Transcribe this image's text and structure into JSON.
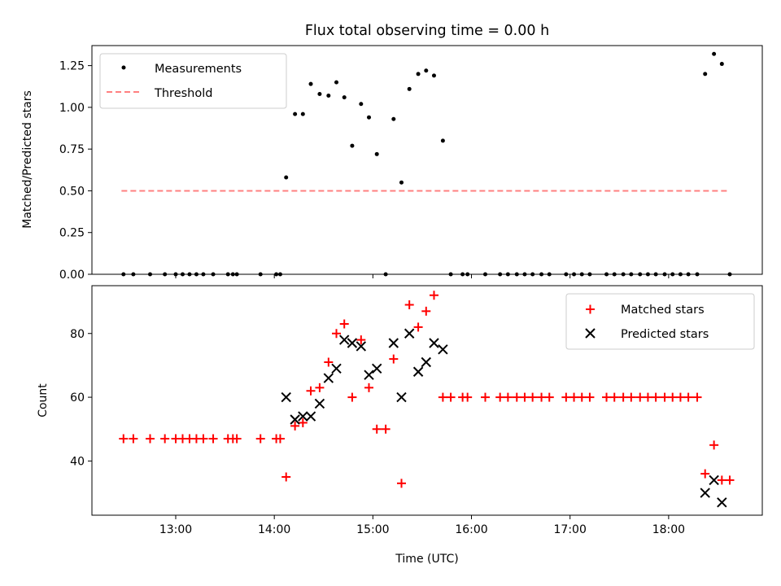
{
  "figure": {
    "title": "Flux total observing time = 0.00 h"
  },
  "chart_data": [
    {
      "type": "scatter",
      "ylabel": "Matched/Predicted stars",
      "xlim": [
        12.15,
        18.95
      ],
      "ylim": [
        0.0,
        1.37
      ],
      "yticks": [
        0.0,
        0.25,
        0.5,
        0.75,
        1.0,
        1.25
      ],
      "ytick_labels": [
        "0.00",
        "0.25",
        "0.50",
        "0.75",
        "1.00",
        "1.25"
      ],
      "xticks": [
        13,
        14,
        15,
        16,
        17,
        18
      ],
      "legend": {
        "placement": "top-left",
        "entries": [
          "Measurements",
          "Threshold"
        ]
      },
      "series": [
        {
          "name": "Measurements",
          "marker": "dot",
          "color": "#000000",
          "points": [
            [
              12.47,
              0.0
            ],
            [
              12.57,
              0.0
            ],
            [
              12.74,
              0.0
            ],
            [
              12.89,
              0.0
            ],
            [
              13.0,
              0.0
            ],
            [
              13.07,
              0.0
            ],
            [
              13.14,
              0.0
            ],
            [
              13.21,
              0.0
            ],
            [
              13.28,
              0.0
            ],
            [
              13.38,
              0.0
            ],
            [
              13.53,
              0.0
            ],
            [
              13.58,
              0.0
            ],
            [
              13.62,
              0.0
            ],
            [
              13.86,
              0.0
            ],
            [
              14.02,
              0.0
            ],
            [
              14.06,
              0.0
            ],
            [
              14.12,
              0.58
            ],
            [
              14.21,
              0.96
            ],
            [
              14.29,
              0.96
            ],
            [
              14.37,
              1.14
            ],
            [
              14.46,
              1.08
            ],
            [
              14.55,
              1.07
            ],
            [
              14.63,
              1.15
            ],
            [
              14.71,
              1.06
            ],
            [
              14.79,
              0.77
            ],
            [
              14.88,
              1.02
            ],
            [
              14.96,
              0.94
            ],
            [
              15.04,
              0.72
            ],
            [
              15.13,
              0.0
            ],
            [
              15.21,
              0.93
            ],
            [
              15.29,
              0.55
            ],
            [
              15.37,
              1.11
            ],
            [
              15.46,
              1.2
            ],
            [
              15.54,
              1.22
            ],
            [
              15.62,
              1.19
            ],
            [
              15.71,
              0.8
            ],
            [
              15.79,
              0.0
            ],
            [
              15.91,
              0.0
            ],
            [
              15.96,
              0.0
            ],
            [
              16.14,
              0.0
            ],
            [
              16.29,
              0.0
            ],
            [
              16.37,
              0.0
            ],
            [
              16.46,
              0.0
            ],
            [
              16.54,
              0.0
            ],
            [
              16.62,
              0.0
            ],
            [
              16.71,
              0.0
            ],
            [
              16.79,
              0.0
            ],
            [
              16.96,
              0.0
            ],
            [
              17.04,
              0.0
            ],
            [
              17.12,
              0.0
            ],
            [
              17.2,
              0.0
            ],
            [
              17.37,
              0.0
            ],
            [
              17.45,
              0.0
            ],
            [
              17.54,
              0.0
            ],
            [
              17.62,
              0.0
            ],
            [
              17.71,
              0.0
            ],
            [
              17.79,
              0.0
            ],
            [
              17.87,
              0.0
            ],
            [
              17.96,
              0.0
            ],
            [
              18.04,
              0.0
            ],
            [
              18.12,
              0.0
            ],
            [
              18.2,
              0.0
            ],
            [
              18.29,
              0.0
            ],
            [
              18.37,
              1.2
            ],
            [
              18.46,
              1.32
            ],
            [
              18.54,
              1.26
            ],
            [
              18.62,
              0.0
            ]
          ]
        },
        {
          "name": "Threshold",
          "marker": "dashed-line",
          "color": "#ff8080",
          "points": [
            [
              12.45,
              0.5
            ],
            [
              18.62,
              0.5
            ]
          ]
        }
      ]
    },
    {
      "type": "scatter",
      "xlabel": "Time (UTC)",
      "ylabel": "Count",
      "xlim": [
        12.15,
        18.95
      ],
      "ylim": [
        23,
        95
      ],
      "yticks": [
        40,
        60,
        80
      ],
      "ytick_labels": [
        "40",
        "60",
        "80"
      ],
      "xticks": [
        13,
        14,
        15,
        16,
        17,
        18
      ],
      "xtick_labels": [
        "13:00",
        "14:00",
        "15:00",
        "16:00",
        "17:00",
        "18:00"
      ],
      "legend": {
        "placement": "top-right",
        "entries": [
          "Matched stars",
          "Predicted stars"
        ]
      },
      "series": [
        {
          "name": "Matched stars",
          "marker": "plus",
          "color": "#ff0000",
          "points": [
            [
              12.47,
              47
            ],
            [
              12.57,
              47
            ],
            [
              12.74,
              47
            ],
            [
              12.89,
              47
            ],
            [
              13.0,
              47
            ],
            [
              13.07,
              47
            ],
            [
              13.14,
              47
            ],
            [
              13.21,
              47
            ],
            [
              13.28,
              47
            ],
            [
              13.38,
              47
            ],
            [
              13.53,
              47
            ],
            [
              13.58,
              47
            ],
            [
              13.62,
              47
            ],
            [
              13.86,
              47
            ],
            [
              14.02,
              47
            ],
            [
              14.06,
              47
            ],
            [
              14.12,
              35
            ],
            [
              14.21,
              51
            ],
            [
              14.29,
              52
            ],
            [
              14.37,
              62
            ],
            [
              14.46,
              63
            ],
            [
              14.55,
              71
            ],
            [
              14.63,
              80
            ],
            [
              14.71,
              83
            ],
            [
              14.79,
              60
            ],
            [
              14.88,
              78
            ],
            [
              14.96,
              63
            ],
            [
              15.04,
              50
            ],
            [
              15.13,
              50
            ],
            [
              15.21,
              72
            ],
            [
              15.29,
              33
            ],
            [
              15.37,
              89
            ],
            [
              15.46,
              82
            ],
            [
              15.54,
              87
            ],
            [
              15.62,
              92
            ],
            [
              15.71,
              60
            ],
            [
              15.79,
              60
            ],
            [
              15.91,
              60
            ],
            [
              15.96,
              60
            ],
            [
              16.14,
              60
            ],
            [
              16.29,
              60
            ],
            [
              16.37,
              60
            ],
            [
              16.46,
              60
            ],
            [
              16.54,
              60
            ],
            [
              16.62,
              60
            ],
            [
              16.71,
              60
            ],
            [
              16.79,
              60
            ],
            [
              16.96,
              60
            ],
            [
              17.04,
              60
            ],
            [
              17.12,
              60
            ],
            [
              17.2,
              60
            ],
            [
              17.37,
              60
            ],
            [
              17.45,
              60
            ],
            [
              17.54,
              60
            ],
            [
              17.62,
              60
            ],
            [
              17.71,
              60
            ],
            [
              17.79,
              60
            ],
            [
              17.87,
              60
            ],
            [
              17.96,
              60
            ],
            [
              18.04,
              60
            ],
            [
              18.12,
              60
            ],
            [
              18.2,
              60
            ],
            [
              18.29,
              60
            ],
            [
              18.37,
              36
            ],
            [
              18.46,
              45
            ],
            [
              18.54,
              34
            ],
            [
              18.62,
              34
            ]
          ]
        },
        {
          "name": "Predicted stars",
          "marker": "x",
          "color": "#000000",
          "points": [
            [
              14.12,
              60
            ],
            [
              14.21,
              53
            ],
            [
              14.29,
              54
            ],
            [
              14.37,
              54
            ],
            [
              14.46,
              58
            ],
            [
              14.55,
              66
            ],
            [
              14.63,
              69
            ],
            [
              14.71,
              78
            ],
            [
              14.79,
              77
            ],
            [
              14.88,
              76
            ],
            [
              14.96,
              67
            ],
            [
              15.04,
              69
            ],
            [
              15.21,
              77
            ],
            [
              15.29,
              60
            ],
            [
              15.37,
              80
            ],
            [
              15.46,
              68
            ],
            [
              15.54,
              71
            ],
            [
              15.62,
              77
            ],
            [
              15.71,
              75
            ],
            [
              18.37,
              30
            ],
            [
              18.46,
              34
            ],
            [
              18.54,
              27
            ]
          ]
        }
      ]
    }
  ]
}
